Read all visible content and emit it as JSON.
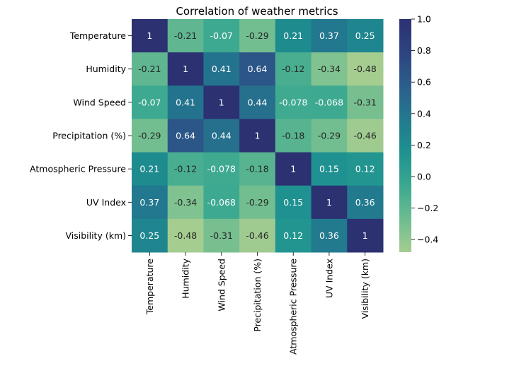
{
  "chart_data": {
    "type": "heatmap",
    "title": "Correlation of weather metrics",
    "xlabel": "",
    "ylabel": "",
    "rows": [
      "Temperature",
      "Humidity",
      "Wind Speed",
      "Precipitation (%)",
      "Atmospheric Pressure",
      "UV Index",
      "Visibility (km)"
    ],
    "columns": [
      "Temperature",
      "Humidity",
      "Wind Speed",
      "Precipitation (%)",
      "Atmospheric Pressure",
      "UV Index",
      "Visibility (km)"
    ],
    "values": [
      [
        1,
        -0.21,
        -0.07,
        -0.29,
        0.21,
        0.37,
        0.25
      ],
      [
        -0.21,
        1,
        0.41,
        0.64,
        -0.12,
        -0.34,
        -0.48
      ],
      [
        -0.07,
        0.41,
        1,
        0.44,
        -0.078,
        -0.068,
        -0.31
      ],
      [
        -0.29,
        0.64,
        0.44,
        1,
        -0.18,
        -0.29,
        -0.46
      ],
      [
        0.21,
        -0.12,
        -0.078,
        -0.18,
        1,
        0.15,
        0.12
      ],
      [
        0.37,
        -0.34,
        -0.068,
        -0.29,
        0.15,
        1,
        0.36
      ],
      [
        0.25,
        -0.48,
        -0.31,
        -0.46,
        0.12,
        0.36,
        1
      ]
    ],
    "labels": [
      [
        "1",
        "-0.21",
        "-0.07",
        "-0.29",
        "0.21",
        "0.37",
        "0.25"
      ],
      [
        "-0.21",
        "1",
        "0.41",
        "0.64",
        "-0.12",
        "-0.34",
        "-0.48"
      ],
      [
        "-0.07",
        "0.41",
        "1",
        "0.44",
        "-0.078",
        "-0.068",
        "-0.31"
      ],
      [
        "-0.29",
        "0.64",
        "0.44",
        "1",
        "-0.18",
        "-0.29",
        "-0.46"
      ],
      [
        "0.21",
        "-0.12",
        "-0.078",
        "-0.18",
        "1",
        "0.15",
        "0.12"
      ],
      [
        "0.37",
        "-0.34",
        "-0.068",
        "-0.29",
        "0.15",
        "1",
        "0.36"
      ],
      [
        "0.25",
        "-0.48",
        "-0.31",
        "-0.46",
        "0.12",
        "0.36",
        "1"
      ]
    ],
    "colormap": "crest",
    "colorbar": {
      "range": [
        -0.48,
        1.0
      ],
      "ticks": [
        1.0,
        0.8,
        0.6,
        0.4,
        0.2,
        0.0,
        -0.2,
        -0.4
      ],
      "tick_labels": [
        "1.0",
        "0.8",
        "0.6",
        "0.4",
        "0.2",
        "0.0",
        "−0.2",
        "−0.4"
      ]
    },
    "colormap_stops": [
      "#a5cd90",
      "#6dbc90",
      "#3aa890",
      "#1d9190",
      "#22798e",
      "#2c5e8c",
      "#2d437f",
      "#2c3172"
    ],
    "annotation_colors": {
      "on_light": "#262626",
      "on_dark": "#ffffff"
    },
    "grid": false,
    "legend": "none"
  }
}
